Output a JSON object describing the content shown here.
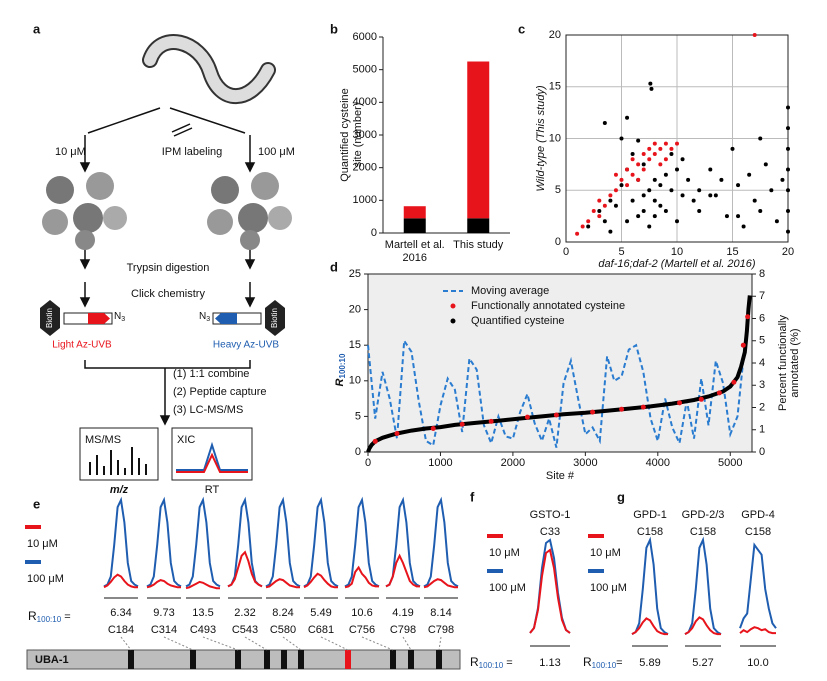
{
  "panel_labels": [
    "a",
    "b",
    "c",
    "d",
    "e",
    "f",
    "g"
  ],
  "scheme": {
    "low_dose": "10 μM",
    "labeling": "IPM labeling",
    "high_dose": "100 μM",
    "digestion": "Trypsin digestion",
    "click": "Click chemistry",
    "probes": [
      {
        "tag": "Biotin",
        "azide": "N",
        "azide_sub": "3",
        "name": "Light Az-UVB"
      },
      {
        "tag": "Biotin",
        "azide": "N",
        "azide_sub": "3",
        "name": "Heavy Az-UVB"
      }
    ],
    "steps": [
      "(1) 1:1 combine",
      "(2) Peptide capture",
      "(3) LC-MS/MS"
    ],
    "ms": {
      "title": "MS/MS",
      "axis": "m/z"
    },
    "xic": {
      "title": "XIC",
      "axis": "RT"
    }
  },
  "chart_data": [
    {
      "type": "bar",
      "stacked": true,
      "ylabel": [
        "Quantified cysteine",
        "site (number)"
      ],
      "categories": [
        [
          "Martell et al.",
          "2016"
        ],
        [
          "This study"
        ]
      ],
      "series": [
        {
          "color": "#000000",
          "values": [
            450,
            450
          ]
        },
        {
          "color": "#e8141c",
          "values": [
            370,
            4800
          ]
        }
      ],
      "ylim": [
        0,
        6000
      ],
      "yticks": [
        0,
        1000,
        2000,
        3000,
        4000,
        5000,
        6000
      ]
    },
    {
      "type": "scatter",
      "grid": true,
      "xlabel": "daf-16;daf-2 (Martell et al. 2016)",
      "ylabel": "Wild-type (This study)",
      "xlim": [
        0,
        20
      ],
      "ylim": [
        0,
        20
      ],
      "xticks": [
        0,
        5,
        10,
        15,
        20
      ],
      "yticks": [
        0,
        5,
        10,
        15,
        20
      ],
      "series": [
        {
          "color": "#000000",
          "x": [
            2,
            3,
            3.5,
            4,
            4.5,
            5,
            5,
            5.5,
            5.5,
            6,
            6,
            6.5,
            6.5,
            7,
            7,
            7,
            7.5,
            7.5,
            8,
            8,
            8,
            8.5,
            8.5,
            9,
            9,
            9.5,
            10,
            10,
            10.5,
            11,
            11.5,
            12,
            12,
            13,
            13.5,
            14,
            14.5,
            15,
            15.5,
            16,
            16.5,
            17,
            17.5,
            18,
            18.5,
            19,
            19.5,
            20,
            20,
            20,
            20,
            20,
            20,
            20,
            5.5,
            7.6,
            7.7,
            3.5,
            10.5,
            13,
            6.5,
            9.5,
            17.5,
            15.5,
            4
          ],
          "values": [
            1.5,
            3,
            2,
            4,
            3.5,
            10,
            5.5,
            2,
            7,
            4,
            8.5,
            2.5,
            6,
            3,
            4.5,
            7.5,
            5,
            1.5,
            6,
            4,
            2.5,
            5.5,
            3.5,
            6.5,
            3,
            5,
            7,
            2,
            4.5,
            6,
            4,
            5,
            3,
            7,
            4.5,
            6,
            2.5,
            9,
            5.5,
            1.5,
            6.5,
            4,
            3,
            7.5,
            5,
            2,
            6,
            1,
            3,
            5,
            7,
            9,
            11,
            13,
            12,
            15.3,
            14.8,
            11.5,
            8,
            4.5,
            9.8,
            8.5,
            10,
            2.5,
            1
          ]
        },
        {
          "color": "#e8141c",
          "x": [
            1,
            1.5,
            2,
            2.5,
            3,
            3.5,
            4,
            4.5,
            5,
            5.5,
            5.5,
            6,
            6,
            6.5,
            6.5,
            7,
            7,
            7.5,
            7.5,
            8,
            8,
            8.5,
            8.5,
            9,
            9,
            9.5,
            10,
            4.5,
            3,
            17
          ],
          "values": [
            0.8,
            1.5,
            2,
            3,
            2.5,
            3.5,
            4.5,
            5,
            6,
            5.5,
            7,
            6.5,
            8,
            7.5,
            6,
            8.5,
            7,
            9,
            8,
            9.5,
            8.5,
            9,
            7.5,
            9.5,
            8,
            9,
            9.5,
            6.5,
            4,
            20
          ]
        }
      ]
    },
    {
      "type": "scatter",
      "xlabel": "Site #",
      "ylabel": {
        "symbol": "R",
        "subscript": "100:10"
      },
      "y2label": [
        "Percent functionally",
        "annotated (%)"
      ],
      "xlim": [
        0,
        5300
      ],
      "xticks": [
        0,
        1000,
        2000,
        3000,
        4000,
        5000
      ],
      "ylim": [
        0,
        25
      ],
      "yticks": [
        0,
        5,
        10,
        15,
        20,
        25
      ],
      "y2lim": [
        0,
        8
      ],
      "y2ticks": [
        0,
        1,
        2,
        3,
        4,
        5,
        6,
        7,
        8
      ],
      "series": [
        {
          "name": "Moving average",
          "type": "line",
          "dashed": true,
          "axis": "y2",
          "color": "#2a7cd0",
          "x": [
            0,
            100,
            200,
            300,
            400,
            500,
            600,
            700,
            800,
            900,
            1000,
            1100,
            1200,
            1300,
            1400,
            1500,
            1600,
            1700,
            1800,
            1900,
            2000,
            2100,
            2200,
            2300,
            2400,
            2500,
            2600,
            2700,
            2800,
            2900,
            3000,
            3100,
            3200,
            3300,
            3400,
            3500,
            3600,
            3700,
            3800,
            3900,
            4000,
            4100,
            4200,
            4300,
            4400,
            4500,
            4600,
            4700,
            4800,
            4900,
            5000,
            5100,
            5200,
            5250
          ],
          "values": [
            4.8,
            1.5,
            3.6,
            2.4,
            0.6,
            5,
            4.5,
            2.3,
            0.5,
            0.3,
            2.1,
            3.3,
            2.8,
            0.9,
            4.2,
            3.7,
            1.2,
            0.4,
            1.6,
            0.7,
            0.6,
            1.8,
            2.6,
            1.3,
            0.5,
            1.5,
            0.2,
            3.1,
            4.1,
            2.4,
            0.8,
            1.1,
            0.5,
            4.3,
            3.2,
            3.4,
            4.6,
            4.8,
            3.6,
            1.5,
            0.5,
            2.4,
            1.1,
            0.4,
            2.3,
            0.6,
            3.3,
            1.2,
            4.1,
            3.1,
            0.8,
            1.6,
            4.8,
            6.5
          ]
        },
        {
          "name": "Functionally annotated cysteine",
          "type": "scatter",
          "color": "#e8141c",
          "x": [
            100,
            400,
            900,
            1300,
            1700,
            2200,
            2600,
            3100,
            3500,
            3800,
            4300,
            4600,
            4850,
            5050,
            5180,
            5240
          ],
          "values": [
            1.5,
            2.6,
            3.3,
            3.9,
            4.3,
            4.9,
            5.2,
            5.6,
            6,
            6.3,
            6.9,
            7.4,
            8.3,
            9.8,
            15,
            19
          ]
        },
        {
          "name": "Quantified cysteine",
          "type": "line",
          "dashed": false,
          "color": "#000000",
          "x": [
            0,
            20,
            50,
            100,
            200,
            300,
            400,
            600,
            800,
            1000,
            1200,
            1500,
            1800,
            2100,
            2400,
            2700,
            3000,
            3300,
            3600,
            3900,
            4200,
            4500,
            4700,
            4900,
            5000,
            5100,
            5150,
            5200,
            5230,
            5250,
            5270
          ],
          "values": [
            0,
            0.5,
            1,
            1.5,
            2,
            2.3,
            2.6,
            3,
            3.3,
            3.5,
            3.8,
            4.1,
            4.4,
            4.7,
            5,
            5.3,
            5.5,
            5.8,
            6.1,
            6.4,
            6.8,
            7.3,
            7.8,
            8.5,
            9.2,
            10.5,
            12,
            14,
            17,
            20,
            22
          ]
        }
      ]
    },
    {
      "type": "line",
      "protein": "UBA-1",
      "ratio_label": {
        "symbol": "R",
        "subscript": "100:10",
        "tail": " ="
      },
      "series": [
        {
          "name": "10 μM",
          "color": "#e8141c"
        },
        {
          "name": "100 μM",
          "color": "#1f5db0"
        }
      ],
      "peaks": [
        {
          "ratio": 6.34,
          "site": "C184",
          "values": [
            [
              3,
              5,
              9,
              14,
              17,
              15,
              10,
              6,
              4,
              3,
              3
            ],
            [
              4,
              6,
              15,
              50,
              92,
              100,
              75,
              30,
              10,
              6,
              4
            ]
          ]
        },
        {
          "ratio": 9.73,
          "site": "C314",
          "values": [
            [
              3,
              4,
              6,
              9,
              11,
              10,
              7,
              5,
              4,
              3,
              3
            ],
            [
              4,
              6,
              15,
              50,
              92,
              100,
              75,
              30,
              10,
              6,
              4
            ]
          ]
        },
        {
          "ratio": 13.5,
          "site": "C493",
          "values": [
            [
              2,
              3,
              5,
              7,
              9,
              8,
              6,
              4,
              3,
              2,
              2
            ],
            [
              4,
              6,
              15,
              50,
              92,
              100,
              75,
              30,
              10,
              6,
              4
            ]
          ]
        },
        {
          "ratio": 2.32,
          "site": "C543",
          "values": [
            [
              4,
              6,
              12,
              25,
              38,
              42,
              32,
              18,
              9,
              6,
              4
            ],
            [
              4,
              6,
              15,
              50,
              92,
              100,
              75,
              30,
              10,
              6,
              4
            ]
          ]
        },
        {
          "ratio": 8.24,
          "site": "C580",
          "values": [
            [
              3,
              4,
              7,
              10,
              12,
              11,
              8,
              5,
              4,
              3,
              3
            ],
            [
              4,
              6,
              15,
              50,
              92,
              100,
              75,
              30,
              10,
              6,
              4
            ]
          ]
        },
        {
          "ratio": 5.49,
          "site": "C681",
          "values": [
            [
              3,
              5,
              9,
              14,
              18,
              16,
              11,
              7,
              4,
              3,
              3
            ],
            [
              4,
              6,
              15,
              50,
              92,
              100,
              75,
              30,
              10,
              6,
              4
            ]
          ]
        },
        {
          "ratio": 10.6,
          "site": "C756",
          "values": [
            [
              3,
              4,
              7,
              20,
              25,
              18,
              14,
              8,
              5,
              4,
              4
            ],
            [
              4,
              6,
              15,
              50,
              92,
              100,
              75,
              30,
              10,
              6,
              4
            ]
          ]
        },
        {
          "ratio": 4.19,
          "site": "C798",
          "values": [
            [
              4,
              6,
              15,
              30,
              38,
              30,
              20,
              10,
              6,
              4,
              4
            ],
            [
              4,
              6,
              15,
              50,
              92,
              100,
              75,
              30,
              10,
              6,
              4
            ]
          ]
        },
        {
          "ratio": 8.14,
          "site": "C798",
          "values": [
            [
              3,
              4,
              7,
              10,
              12,
              11,
              8,
              5,
              4,
              3,
              3
            ],
            [
              4,
              6,
              15,
              50,
              92,
              100,
              75,
              30,
              10,
              6,
              4
            ]
          ]
        }
      ]
    },
    {
      "type": "line",
      "ratio_label": {
        "symbol": "R",
        "subscript": "100:10",
        "tail": " ="
      },
      "series": [
        {
          "name": "10 μM",
          "color": "#e8141c"
        },
        {
          "name": "100 μM",
          "color": "#1f5db0"
        }
      ],
      "peaks": [
        {
          "name": "GSTO-1",
          "site": "C33",
          "ratio": 1.13,
          "values": [
            [
              5,
              10,
              28,
              62,
              85,
              88,
              70,
              40,
              18,
              8,
              5
            ],
            [
              5,
              10,
              30,
              70,
              95,
              98,
              80,
              45,
              20,
              8,
              5
            ]
          ]
        }
      ]
    },
    {
      "type": "line",
      "ratio_label": {
        "symbol": "R",
        "subscript": "100:10",
        "tail": "="
      },
      "series": [
        {
          "name": "10 μM",
          "color": "#e8141c"
        },
        {
          "name": "100 μM",
          "color": "#1f5db0"
        }
      ],
      "peaks": [
        {
          "name": "GPD-1",
          "site": "C158",
          "ratio": 5.89,
          "values": [
            [
              4,
              6,
              10,
              16,
              20,
              18,
              12,
              7,
              5,
              4,
              4
            ],
            [
              4,
              6,
              15,
              50,
              92,
              100,
              75,
              30,
              10,
              6,
              4
            ]
          ]
        },
        {
          "name": "GPD-2/3",
          "site": "C158",
          "ratio": 5.27,
          "values": [
            [
              4,
              6,
              10,
              17,
              21,
              19,
              13,
              8,
              5,
              4,
              4
            ],
            [
              4,
              6,
              15,
              50,
              92,
              100,
              75,
              30,
              10,
              6,
              4
            ]
          ]
        },
        {
          "name": "GPD-4",
          "site": "C158",
          "ratio": {
            "value": 10,
            "label": "10.0"
          },
          "values": [
            [
              5,
              8,
              6,
              9,
              11,
              10,
              8,
              9,
              6,
              5,
              5
            ],
            [
              10,
              20,
              25,
              60,
              95,
              90,
              85,
              50,
              30,
              15,
              10
            ]
          ]
        }
      ]
    }
  ]
}
